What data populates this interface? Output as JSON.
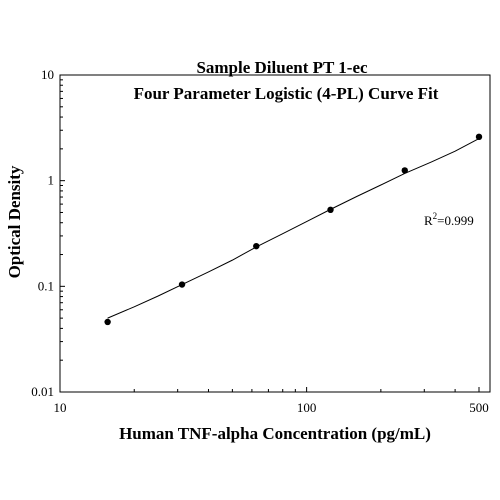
{
  "chart_data": {
    "type": "scatter",
    "title": "Sample Diluent PT 1-ec",
    "subtitle": "Four Parameter Logistic (4-PL) Curve Fit",
    "xlabel": "Human TNF-alpha Concentration (pg/mL)",
    "ylabel": "Optical Density",
    "x_scale": "log",
    "y_scale": "log",
    "xlim": [
      10,
      500
    ],
    "ylim": [
      0.01,
      10
    ],
    "x_ticks": [
      10,
      100,
      500
    ],
    "x_tick_labels": [
      "10",
      "100",
      "500"
    ],
    "y_ticks": [
      0.01,
      0.1,
      1,
      10
    ],
    "y_tick_labels": [
      "0.01",
      "0.1",
      "1",
      "10"
    ],
    "grid": false,
    "points": [
      {
        "x": 15.6,
        "y": 0.046
      },
      {
        "x": 31.25,
        "y": 0.104
      },
      {
        "x": 62.5,
        "y": 0.24
      },
      {
        "x": 125,
        "y": 0.53
      },
      {
        "x": 250,
        "y": 1.25
      },
      {
        "x": 500,
        "y": 2.6
      }
    ],
    "fit_curve": {
      "model": "4-PL",
      "x": [
        15.6,
        20,
        25,
        31.25,
        40,
        50,
        62.5,
        80,
        100,
        125,
        160,
        200,
        250,
        320,
        400,
        500
      ],
      "y": [
        0.05,
        0.064,
        0.081,
        0.104,
        0.137,
        0.177,
        0.236,
        0.315,
        0.41,
        0.535,
        0.71,
        0.91,
        1.17,
        1.5,
        1.9,
        2.5
      ]
    },
    "annotation": {
      "label": "R",
      "superscript": "2",
      "value_text": "=0.999"
    },
    "colors": {
      "points": "#000000",
      "curve": "#000000",
      "axes": "#000000"
    }
  }
}
